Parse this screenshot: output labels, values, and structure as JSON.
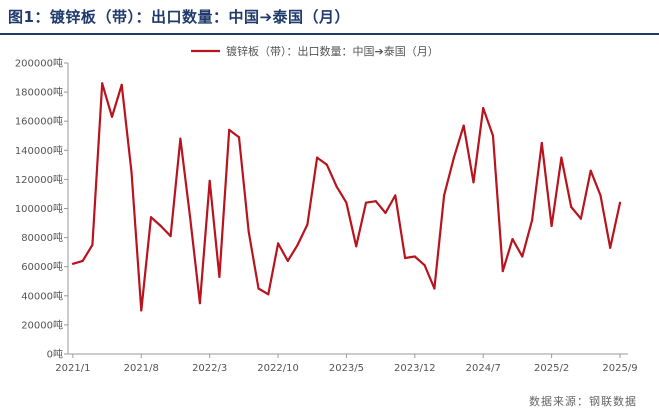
{
  "figure_title": "图1：镀锌板（带）：出口数量：中国➔泰国（月）",
  "source_note": "数据来源：钢联数据",
  "chart_data": {
    "type": "line",
    "title": "图1：镀锌板（带）：出口数量：中国➔泰国（月）",
    "xlabel": "",
    "ylabel": "",
    "legend_position": "top-center",
    "grid": false,
    "y_unit": "吨",
    "ylim": [
      0,
      200000
    ],
    "y_ticks": [
      0,
      20000,
      40000,
      60000,
      80000,
      100000,
      120000,
      140000,
      160000,
      180000,
      200000
    ],
    "y_tick_labels": [
      "0吨",
      "20000吨",
      "40000吨",
      "60000吨",
      "80000吨",
      "100000吨",
      "120000吨",
      "140000吨",
      "160000吨",
      "180000吨",
      "200000吨"
    ],
    "x_tick_labels": [
      "2021/1",
      "2021/8",
      "2022/3",
      "2022/10",
      "2023/5",
      "2023/12",
      "2024/7",
      "2025/2",
      "2025/9"
    ],
    "x": [
      "2021/1",
      "2021/2",
      "2021/3",
      "2021/4",
      "2021/5",
      "2021/6",
      "2021/7",
      "2021/8",
      "2021/9",
      "2021/10",
      "2021/11",
      "2021/12",
      "2022/1",
      "2022/2",
      "2022/3",
      "2022/4",
      "2022/5",
      "2022/6",
      "2022/7",
      "2022/8",
      "2022/9",
      "2022/10",
      "2022/11",
      "2022/12",
      "2023/1",
      "2023/2",
      "2023/3",
      "2023/4",
      "2023/5",
      "2023/6",
      "2023/7",
      "2023/8",
      "2023/9",
      "2023/10",
      "2023/11",
      "2023/12",
      "2024/1",
      "2024/2",
      "2024/3",
      "2024/4",
      "2024/5",
      "2024/6",
      "2024/7",
      "2024/8",
      "2024/9",
      "2024/10",
      "2024/11",
      "2024/12",
      "2025/1",
      "2025/2",
      "2025/3",
      "2025/4",
      "2025/5",
      "2025/6",
      "2025/7",
      "2025/8",
      "2025/9"
    ],
    "series": [
      {
        "name": "镀锌板（带）：出口数量：中国➔泰国（月）",
        "color": "#b7141e",
        "values": [
          62000,
          64000,
          75000,
          186000,
          163000,
          185000,
          125000,
          30000,
          94000,
          88000,
          81000,
          148000,
          94000,
          35000,
          119000,
          53000,
          154000,
          149000,
          84000,
          45000,
          41000,
          76000,
          64000,
          75000,
          89000,
          135000,
          130000,
          115000,
          104000,
          74000,
          104000,
          105000,
          97000,
          109000,
          66000,
          67000,
          61000,
          45000,
          109000,
          135000,
          157000,
          118000,
          169000,
          150000,
          57000,
          79000,
          67000,
          92000,
          145000,
          88000,
          135000,
          101000,
          93000,
          126000,
          109000,
          73000,
          104000
        ]
      }
    ]
  }
}
